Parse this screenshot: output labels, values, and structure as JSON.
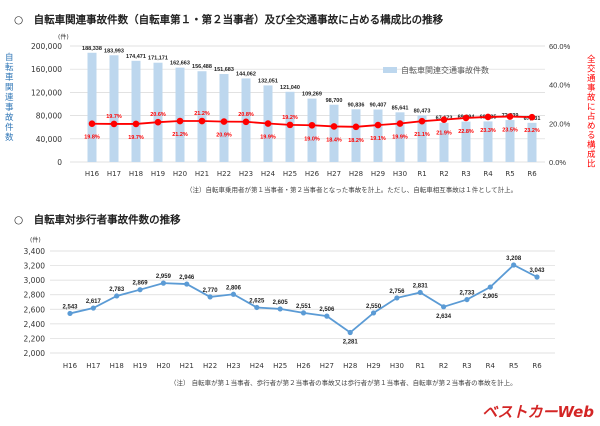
{
  "chart_data": [
    {
      "type": "bar+line",
      "title": "自転車関連事故件数（自転車第１・第２当事者）及び全交通事故に占める構成比の推移",
      "categories": [
        "H16",
        "H17",
        "H18",
        "H19",
        "H20",
        "H21",
        "H22",
        "H23",
        "H24",
        "H25",
        "H26",
        "H27",
        "H28",
        "H29",
        "H30",
        "R1",
        "R2",
        "R3",
        "R4",
        "R5",
        "R6"
      ],
      "bar_series": {
        "name": "自転車関連交通事故件数",
        "values": [
          188338,
          183993,
          174471,
          171171,
          162663,
          156488,
          151683,
          144062,
          132051,
          121040,
          109269,
          98700,
          90836,
          90407,
          85641,
          80473,
          67673,
          69694,
          69985,
          72339,
          67531
        ],
        "color": "#bdd7ee"
      },
      "line_series": {
        "values": [
          19.8,
          19.7,
          19.7,
          20.6,
          21.2,
          21.2,
          20.9,
          20.8,
          19.9,
          19.2,
          19.0,
          18.4,
          18.2,
          19.1,
          19.9,
          21.1,
          21.9,
          22.8,
          23.3,
          23.5,
          23.2
        ],
        "color": "#ff0000"
      },
      "ylabel": "自転車関連事故件数",
      "y_unit": "(件)",
      "ylim": [
        0,
        200000
      ],
      "yticks": [
        0,
        40000,
        80000,
        120000,
        160000,
        200000
      ],
      "y2label": "全交通事故に占める構成比",
      "y2lim": [
        0,
        60
      ],
      "y2ticks": [
        0,
        20,
        40,
        60
      ],
      "note": "（注）自転車乗用者が第１当事者・第２当事者となった事故を計上。ただし、自転車相互事故は１件として計上。",
      "legend": "top-right",
      "grid": true
    },
    {
      "type": "line",
      "title": "自転車対歩行者事故件数の推移",
      "categories": [
        "H16",
        "H17",
        "H18",
        "H19",
        "H20",
        "H21",
        "H22",
        "H23",
        "H24",
        "H25",
        "H26",
        "H27",
        "H28",
        "H29",
        "H30",
        "R1",
        "R2",
        "R3",
        "R4",
        "R5",
        "R6"
      ],
      "values": [
        2543,
        2617,
        2783,
        2869,
        2959,
        2946,
        2770,
        2806,
        2625,
        2605,
        2551,
        2506,
        2281,
        2550,
        2756,
        2831,
        2634,
        2733,
        2905,
        3208,
        3043
      ],
      "color": "#5b9bd5",
      "y_unit": "(件)",
      "ylim": [
        2000,
        3400
      ],
      "yticks": [
        2000,
        2200,
        2400,
        2600,
        2800,
        3000,
        3200,
        3400
      ],
      "grid": true,
      "note": "（注） 自転車が第１当事者、歩行者が第２当事者の事故又は歩行者が第１当事者、自転車が第２当事者の事故を計上。"
    }
  ],
  "bullet": "○",
  "watermark": "ベストカーWeb"
}
